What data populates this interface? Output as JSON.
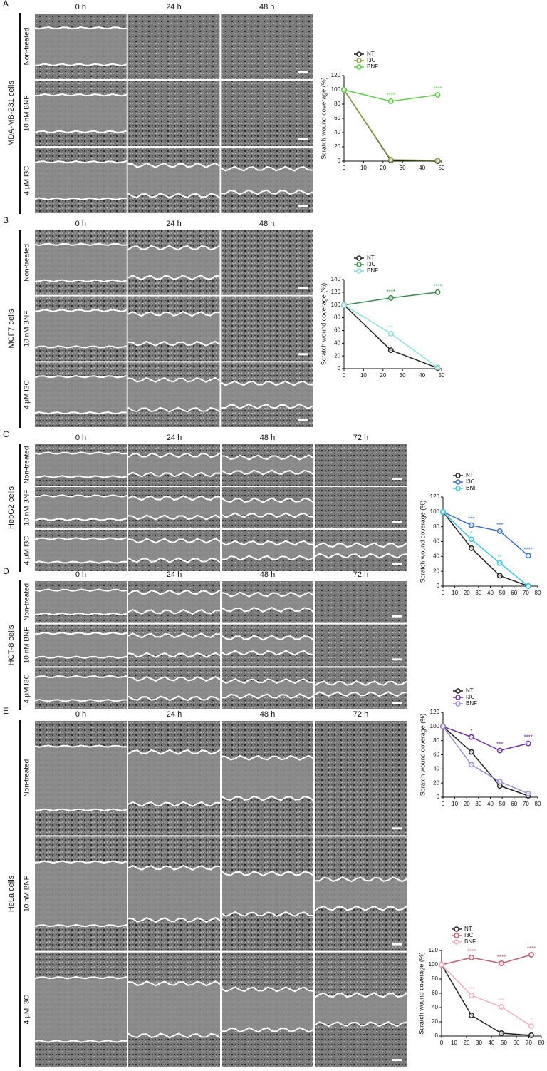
{
  "panels": [
    {
      "letter": "A",
      "cell_line": "MDA-MB-231 cells",
      "times": [
        "0 h",
        "24 h",
        "48 h"
      ],
      "rows": [
        "Non-treated",
        "10 nM BNF",
        "4 μM I3C"
      ]
    },
    {
      "letter": "B",
      "cell_line": "MCF7 cells",
      "times": [
        "0 h",
        "24 h",
        "48 h"
      ],
      "rows": [
        "Non-treated",
        "10 nM BNF",
        "4 μM I3C"
      ]
    },
    {
      "letter": "C",
      "cell_line": "HepG2 cells",
      "times": [
        "0 h",
        "24 h",
        "48 h",
        "72 h"
      ],
      "rows": [
        "Non-treated",
        "10 nM BNF",
        "4 μM I3C"
      ]
    },
    {
      "letter": "D",
      "cell_line": "HCT-8 cells",
      "times": [
        "0 h",
        "24 h",
        "48 h",
        "72 h"
      ],
      "rows": [
        "Non-treated",
        "10 nM BNF",
        "4 μM I3C"
      ]
    },
    {
      "letter": "E",
      "cell_line": "HeLa cells",
      "times": [
        "0 h",
        "24 h",
        "48 h",
        "72 h"
      ],
      "rows": [
        "Non-treated",
        "10 nM BNF",
        "4 μM I3C"
      ]
    }
  ],
  "chart_data": [
    {
      "type": "line",
      "y_label": "Scratch wound coverage (%)",
      "legend": "upper left",
      "x": [
        0,
        24,
        48
      ],
      "xlim": [
        0,
        50
      ],
      "xticks": [
        0,
        10,
        20,
        30,
        40,
        50
      ],
      "ylim": [
        0,
        120
      ],
      "yticks": [
        0,
        20,
        40,
        60,
        80,
        100,
        120
      ],
      "series": [
        {
          "name": "NT",
          "color": "#222222",
          "values": [
            100,
            1,
            0
          ]
        },
        {
          "name": "I3C",
          "color": "#8aa050",
          "values": [
            100,
            2,
            1
          ]
        },
        {
          "name": "BNF",
          "color": "#5fd046",
          "values": [
            100,
            84,
            93
          ],
          "annotations": [
            null,
            "****",
            "****"
          ]
        }
      ]
    },
    {
      "type": "line",
      "y_label": "Scratch wound coverage (%)",
      "legend": "upper left",
      "x": [
        0,
        24,
        48
      ],
      "xlim": [
        0,
        50
      ],
      "xticks": [
        0,
        10,
        20,
        30,
        40,
        50
      ],
      "ylim": [
        0,
        140
      ],
      "yticks": [
        0,
        20,
        40,
        60,
        80,
        100,
        120,
        140
      ],
      "series": [
        {
          "name": "NT",
          "color": "#222222",
          "values": [
            100,
            29,
            1
          ]
        },
        {
          "name": "I3C",
          "color": "#3a8a50",
          "values": [
            100,
            111,
            120
          ],
          "annotations": [
            null,
            "****",
            "****"
          ]
        },
        {
          "name": "BNF",
          "color": "#8de0e0",
          "values": [
            100,
            55,
            2
          ],
          "annotations": [
            null,
            "**",
            null
          ]
        }
      ]
    },
    {
      "type": "line",
      "y_label": "Scratch wound coverage (%)",
      "legend": "upper left",
      "x": [
        0,
        24,
        48,
        72
      ],
      "xlim": [
        0,
        80
      ],
      "xticks": [
        0,
        10,
        20,
        30,
        40,
        50,
        60,
        70,
        80
      ],
      "ylim": [
        0,
        120
      ],
      "yticks": [
        0,
        20,
        40,
        60,
        80,
        100,
        120
      ],
      "series": [
        {
          "name": "NT",
          "color": "#222222",
          "values": [
            100,
            51,
            14,
            0
          ]
        },
        {
          "name": "I3C",
          "color": "#3a6fd0",
          "values": [
            100,
            82,
            74,
            41
          ],
          "annotations": [
            null,
            "***",
            "***",
            "****"
          ]
        },
        {
          "name": "BNF",
          "color": "#3cc8e0",
          "values": [
            100,
            63,
            31,
            0
          ],
          "annotations": [
            null,
            "*",
            "**",
            null
          ]
        }
      ]
    },
    {
      "type": "line",
      "y_label": "Scratch wound coverage (%)",
      "legend": "upper left",
      "x": [
        0,
        24,
        48,
        72
      ],
      "xlim": [
        0,
        80
      ],
      "xticks": [
        0,
        10,
        20,
        30,
        40,
        50,
        60,
        70,
        80
      ],
      "ylim": [
        0,
        120
      ],
      "yticks": [
        0,
        20,
        40,
        60,
        80,
        100,
        120
      ],
      "series": [
        {
          "name": "NT",
          "color": "#222222",
          "values": [
            100,
            64,
            16,
            2
          ]
        },
        {
          "name": "I3C",
          "color": "#7030a0",
          "values": [
            100,
            85,
            66,
            76
          ],
          "annotations": [
            null,
            "*",
            "***",
            "****"
          ]
        },
        {
          "name": "BNF",
          "color": "#a090d0",
          "values": [
            100,
            46,
            22,
            5
          ]
        }
      ]
    },
    {
      "type": "line",
      "y_label": "Scratch wound coverage (%)",
      "legend": "upper left",
      "x": [
        0,
        24,
        48,
        72
      ],
      "xlim": [
        0,
        80
      ],
      "xticks": [
        0,
        10,
        20,
        30,
        40,
        50,
        60,
        70,
        80
      ],
      "ylim": [
        0,
        120
      ],
      "yticks": [
        0,
        20,
        40,
        60,
        80,
        100,
        120
      ],
      "series": [
        {
          "name": "NT",
          "color": "#222222",
          "values": [
            100,
            29,
            4,
            1
          ]
        },
        {
          "name": "I3C",
          "color": "#c06070",
          "values": [
            100,
            110,
            102,
            114
          ],
          "annotations": [
            null,
            "****",
            "****",
            "****"
          ]
        },
        {
          "name": "BNF",
          "color": "#f0b0c0",
          "values": [
            100,
            57,
            41,
            14
          ],
          "annotations": [
            null,
            "***",
            "***",
            "*"
          ]
        }
      ]
    }
  ]
}
